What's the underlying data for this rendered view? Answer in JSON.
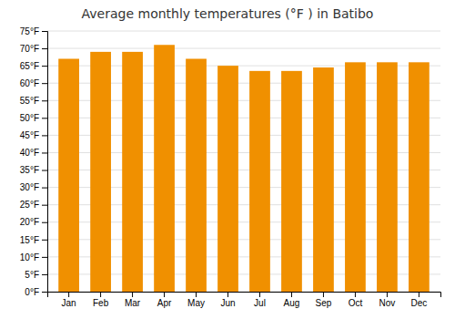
{
  "chart_data": {
    "type": "bar",
    "title": "Average monthly temperatures (°F ) in Batibo",
    "categories": [
      "Jan",
      "Feb",
      "Mar",
      "Apr",
      "May",
      "Jun",
      "Jul",
      "Aug",
      "Sep",
      "Oct",
      "Nov",
      "Dec"
    ],
    "values": [
      67.0,
      69.0,
      69.0,
      71.0,
      67.0,
      65.0,
      63.5,
      63.5,
      64.5,
      66.0,
      66.0,
      66.0
    ],
    "color": "#F09000",
    "ylim": [
      0,
      75
    ],
    "yticks": [
      {
        "value": 0,
        "label": "0°F"
      },
      {
        "value": 5,
        "label": "5°F"
      },
      {
        "value": 10,
        "label": "10°F"
      },
      {
        "value": 15,
        "label": "15°F"
      },
      {
        "value": 20,
        "label": "20°F"
      },
      {
        "value": 25,
        "label": "25°F"
      },
      {
        "value": 30,
        "label": "30°F"
      },
      {
        "value": 35,
        "label": "35°F"
      },
      {
        "value": 40,
        "label": "40°F"
      },
      {
        "value": 45,
        "label": "45°F"
      },
      {
        "value": 50,
        "label": "50°F"
      },
      {
        "value": 55,
        "label": "55°F"
      },
      {
        "value": 60,
        "label": "60°F"
      },
      {
        "value": 65,
        "label": "65°F"
      },
      {
        "value": 70,
        "label": "70°F"
      },
      {
        "value": 75,
        "label": "75°F"
      }
    ],
    "grid": true
  }
}
